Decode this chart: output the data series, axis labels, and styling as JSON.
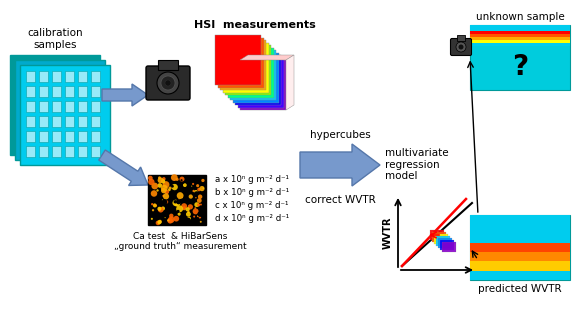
{
  "bg_color": "#ffffff",
  "text_elements": {
    "calibration_samples": "calibration\nsamples",
    "hsi_measurements": "HSI  measurements",
    "ca_test_label": "Ca test  & HiBarSens\n„ground truth“ measurement",
    "hypercubes": "hypercubes",
    "correct_wvtr": "correct WVTR",
    "multivariate": "multivariate\nregression\nmodel",
    "unknown_sample": "unknown sample",
    "predicted_wvtr": "predicted WVTR",
    "wvtr_axis": "WVTR",
    "meas_a": "a x 10ⁿ g m⁻² d⁻¹",
    "meas_b": "b x 10ⁿ g m⁻² d⁻¹",
    "meas_c": "c x 10ⁿ g m⁻² d⁻¹",
    "meas_d": "d x 10ⁿ g m⁻² d⁻¹"
  },
  "colors": {
    "arrow_blue_fill": "#7799CC",
    "arrow_blue_edge": "#5577AA",
    "cyan_light": "#00CCEE",
    "cyan_mid": "#00AACC",
    "cyan_dark": "#009999",
    "black": "#000000",
    "white": "#ffffff",
    "red_line": "#FF0000",
    "dark_gray": "#222222",
    "mid_gray": "#555555",
    "orange": "#FF8800"
  },
  "rainbow_layers": [
    "#8800CC",
    "#4400FF",
    "#0000FF",
    "#0088FF",
    "#00CCFF",
    "#00FF88",
    "#88FF00",
    "#FFFF00",
    "#FFAA00",
    "#FF5500",
    "#FF0000"
  ],
  "stripe_colors_unknown": [
    "#00CCEE",
    "#00CCEE",
    "#FF0000",
    "#FF5500",
    "#FFAA00",
    "#FFFF00",
    "#00CCEE"
  ],
  "stripe_colors_predicted": [
    "#00CCEE",
    "#00CCEE",
    "#00CCEE",
    "#FF4400",
    "#FF8800",
    "#FFCC00",
    "#00CCEE"
  ]
}
